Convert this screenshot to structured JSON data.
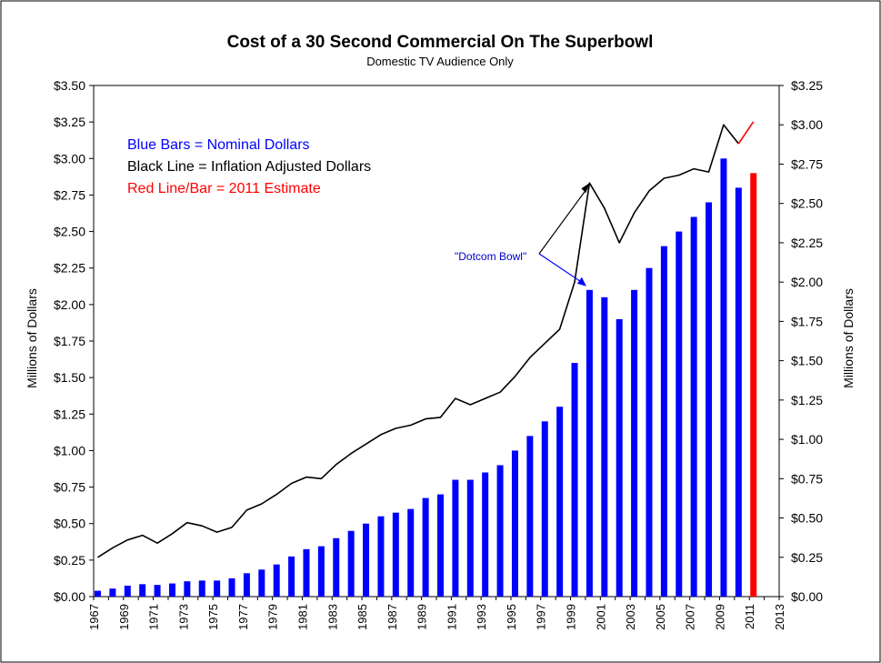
{
  "chart_data": {
    "type": "bar",
    "title": "Cost of a 30 Second Commercial On The Superbowl",
    "subtitle": "Domestic TV Audience Only",
    "ylabel_left": "Millions of Dollars",
    "ylabel_right": "Millions of Dollars",
    "ylim_left": [
      0,
      3.5
    ],
    "ylim_right": [
      0,
      3.25
    ],
    "xlim": [
      1967,
      2013
    ],
    "left_ticks": [
      "$0.00",
      "$0.25",
      "$0.50",
      "$0.75",
      "$1.00",
      "$1.25",
      "$1.50",
      "$1.75",
      "$2.00",
      "$2.25",
      "$2.50",
      "$2.75",
      "$3.00",
      "$3.25",
      "$3.50"
    ],
    "right_ticks": [
      "$0.00",
      "$0.25",
      "$0.50",
      "$0.75",
      "$1.00",
      "$1.25",
      "$1.50",
      "$1.75",
      "$2.00",
      "$2.25",
      "$2.50",
      "$2.75",
      "$3.00",
      "$3.25"
    ],
    "x_ticks": [
      "1967",
      "1969",
      "1971",
      "1973",
      "1975",
      "1977",
      "1979",
      "1981",
      "1983",
      "1985",
      "1987",
      "1989",
      "1991",
      "1993",
      "1995",
      "1997",
      "1999",
      "2001",
      "2003",
      "2005",
      "2007",
      "2009",
      "2011",
      "2013"
    ],
    "legend": [
      {
        "text": "Blue Bars = Nominal Dollars",
        "color": "#0000ff"
      },
      {
        "text": "Black Line = Inflation Adjusted Dollars",
        "color": "#000000"
      },
      {
        "text": "Red Line/Bar = 2011 Estimate",
        "color": "#ff0000"
      }
    ],
    "annotation": {
      "text": "\"Dotcom Bowl\"",
      "color": "#0000cc"
    },
    "series": [
      {
        "name": "Nominal Dollars",
        "color": "#0000ff",
        "axis": "left",
        "kind": "bar",
        "x": [
          1967,
          1968,
          1969,
          1970,
          1971,
          1972,
          1973,
          1974,
          1975,
          1976,
          1977,
          1978,
          1979,
          1980,
          1981,
          1982,
          1983,
          1984,
          1985,
          1986,
          1987,
          1988,
          1989,
          1990,
          1991,
          1992,
          1993,
          1994,
          1995,
          1996,
          1997,
          1998,
          1999,
          2000,
          2001,
          2002,
          2003,
          2004,
          2005,
          2006,
          2007,
          2008,
          2009,
          2010
        ],
        "values": [
          0.04,
          0.055,
          0.075,
          0.085,
          0.08,
          0.09,
          0.105,
          0.11,
          0.11,
          0.125,
          0.16,
          0.185,
          0.22,
          0.275,
          0.325,
          0.345,
          0.4,
          0.45,
          0.5,
          0.55,
          0.575,
          0.6,
          0.675,
          0.7,
          0.8,
          0.8,
          0.85,
          0.9,
          1.0,
          1.1,
          1.2,
          1.3,
          1.6,
          2.1,
          2.05,
          1.9,
          2.1,
          2.25,
          2.4,
          2.5,
          2.6,
          2.7,
          3.0,
          2.8
        ]
      },
      {
        "name": "2011 Estimate",
        "color": "#ff0000",
        "axis": "left",
        "kind": "bar",
        "x": [
          2011
        ],
        "values": [
          2.9
        ]
      },
      {
        "name": "Inflation Adjusted Dollars",
        "color": "#000000",
        "axis": "right",
        "kind": "line",
        "x": [
          1967,
          1968,
          1969,
          1970,
          1971,
          1972,
          1973,
          1974,
          1975,
          1976,
          1977,
          1978,
          1979,
          1980,
          1981,
          1982,
          1983,
          1984,
          1985,
          1986,
          1987,
          1988,
          1989,
          1990,
          1991,
          1992,
          1993,
          1994,
          1995,
          1996,
          1997,
          1998,
          1999,
          2000,
          2001,
          2002,
          2003,
          2004,
          2005,
          2006,
          2007,
          2008,
          2009,
          2010
        ],
        "values": [
          0.25,
          0.31,
          0.36,
          0.39,
          0.34,
          0.4,
          0.47,
          0.45,
          0.41,
          0.44,
          0.55,
          0.59,
          0.65,
          0.72,
          0.76,
          0.75,
          0.84,
          0.91,
          0.97,
          1.03,
          1.07,
          1.09,
          1.13,
          1.14,
          1.26,
          1.22,
          1.26,
          1.3,
          1.4,
          1.52,
          1.61,
          1.7,
          2.0,
          2.63,
          2.47,
          2.25,
          2.44,
          2.58,
          2.66,
          2.68,
          2.72,
          2.7,
          3.0,
          2.88
        ]
      },
      {
        "name": "2011 Estimate Line",
        "color": "#ff0000",
        "axis": "right",
        "kind": "line",
        "x": [
          2010,
          2011
        ],
        "values": [
          2.88,
          3.02
        ]
      }
    ]
  }
}
